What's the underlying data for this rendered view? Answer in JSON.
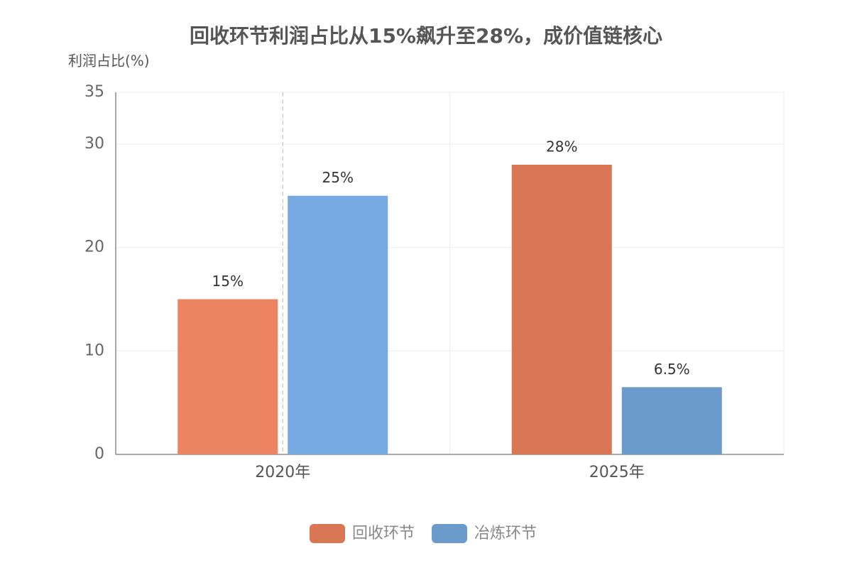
{
  "chart_data": {
    "type": "bar",
    "title": "回收环节利润占比从15%飙升至28%，成价值链核心",
    "y_axis_label": "利润占比(%)",
    "categories": [
      "2020年",
      "2025年"
    ],
    "series": [
      {
        "name": "回收环节",
        "color": "#d97754",
        "bar_colors": [
          "#ec8462",
          "#d97754"
        ],
        "values": [
          15,
          28
        ],
        "value_labels": [
          "15%",
          "28%"
        ]
      },
      {
        "name": "冶炼环节",
        "color": "#6b9bcb",
        "bar_colors": [
          "#75a9df",
          "#6b9bcb"
        ],
        "values": [
          25,
          6.5
        ],
        "value_labels": [
          "25%",
          "6.5%"
        ]
      }
    ],
    "ylim": [
      0,
      35
    ],
    "yticks": [
      0,
      10,
      20,
      30,
      35
    ],
    "grid": true,
    "legend": "bottom"
  }
}
